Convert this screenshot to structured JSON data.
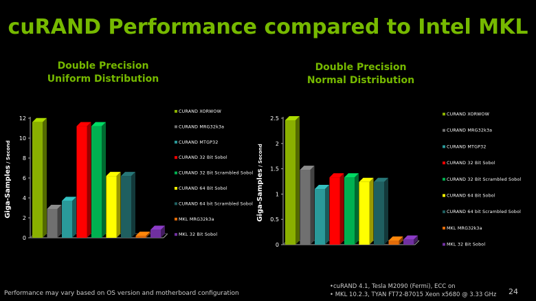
{
  "title": "cuRAND Performance compared to Intel MKL",
  "footer_note": "Performance may vary based on OS version and motherboard configuration",
  "system_notes": [
    "•cuRAND 4.1, Tesla M2090 (Fermi), ECC on",
    "• MKL 10.2.3, TYAN FT72-B7015 Xeon x5680 @ 3.33 GHz"
  ],
  "page_number": "24",
  "chart_data": [
    {
      "type": "bar",
      "title": "Double Precision Uniform Distribution",
      "title_lines": [
        "Double Precision",
        "Uniform Distribution"
      ],
      "ylabel_main": "Giga-Samples",
      "ylabel_suffix": " / Second",
      "ylim": [
        0,
        12
      ],
      "yticks": [
        "0",
        "2",
        "4",
        "6",
        "8",
        "10",
        "12"
      ],
      "legend_position": "right",
      "categories": [
        "CURAND XORWOW",
        "CURAND MRG32k3a",
        "CURAND MTGP32",
        "CURAND 32 Bit Sobol",
        "CURAND 32 Bit Scrambled Sobol",
        "CURAND 64 Bit Sobol",
        "CURAND 64 bit Scrambled Sobol",
        "MKL MRG32k3a",
        "MKL 32 Bit Sobol"
      ],
      "values": [
        11.6,
        2.9,
        3.7,
        11.2,
        11.2,
        6.2,
        6.2,
        0.2,
        0.8
      ],
      "colors": [
        "#8ab000",
        "#707070",
        "#2a9a9a",
        "#ff0000",
        "#00b050",
        "#ffff00",
        "#1f5f60",
        "#e36c09",
        "#7030a0"
      ]
    },
    {
      "type": "bar",
      "title": "Double Precision Normal Distribution",
      "title_lines": [
        "Double Precision",
        "Normal Distribution"
      ],
      "ylabel_main": "Giga-Samples",
      "ylabel_suffix": " / Second",
      "ylim": [
        0,
        2.5
      ],
      "yticks": [
        "0",
        "0.5",
        "1",
        "1.5",
        "2",
        "2.5"
      ],
      "legend_position": "right",
      "categories": [
        "CURAND XORWOW",
        "CURAND MRG32k3a",
        "CURAND MTGP32",
        "CURAND 32 Bit Sobol",
        "CURAND 32 Bit Scrambled Sobol",
        "CURAND 64 Bit Sobol",
        "CURAND 64 bit Scrambled Sobol",
        "MKL MRG32k3a",
        "MKL 32 Bit Sobol"
      ],
      "values": [
        2.46,
        1.48,
        1.1,
        1.33,
        1.33,
        1.24,
        1.24,
        0.08,
        0.1
      ],
      "colors": [
        "#8ab000",
        "#707070",
        "#2a9a9a",
        "#ff0000",
        "#00b050",
        "#ffff00",
        "#1f5f60",
        "#e36c09",
        "#7030a0"
      ]
    }
  ]
}
